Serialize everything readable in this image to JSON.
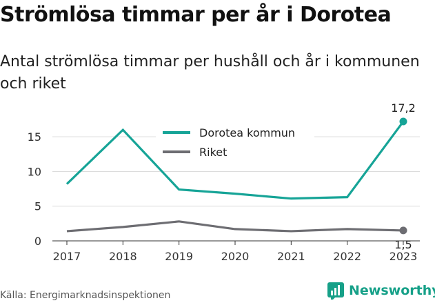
{
  "title": "Strömlösa timmar per år i Dorotea",
  "subtitle": "Antal strömlösa timmar per hushåll och år i kommunen och riket",
  "source": "Källa: Energimarknadsinspektionen",
  "brand": "Newsworthy",
  "colors": {
    "dorotea": "#16a497",
    "riket": "#6d6d72"
  },
  "chart_data": {
    "type": "line",
    "categories": [
      "2017",
      "2018",
      "2019",
      "2020",
      "2021",
      "2022",
      "2023"
    ],
    "yticks": [
      "0",
      "5",
      "10",
      "15"
    ],
    "ylim": [
      0,
      18
    ],
    "grid": true,
    "legend_position": "top",
    "series": [
      {
        "name": "Dorotea kommun",
        "values": [
          8.2,
          16.0,
          7.4,
          6.8,
          6.1,
          6.3,
          17.2
        ],
        "end_label": "17,2"
      },
      {
        "name": "Riket",
        "values": [
          1.4,
          2.0,
          2.8,
          1.7,
          1.4,
          1.7,
          1.5
        ],
        "end_label": "1,5"
      }
    ]
  }
}
